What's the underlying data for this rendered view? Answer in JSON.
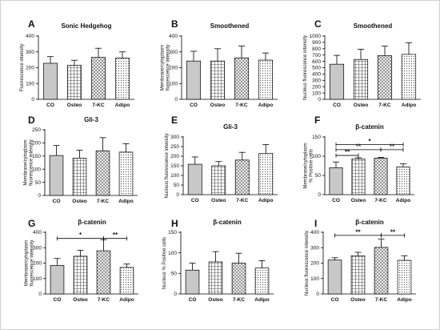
{
  "fill_styles": [
    "solid-gray",
    "grid",
    "crosshatch",
    "dots"
  ],
  "colors": {
    "solid_gray": "#c8c8c8",
    "pattern_ink": "#555555",
    "bar_stroke": "#000000"
  },
  "chart_data": [
    {
      "id": "A",
      "panel_label": "A",
      "type": "bar",
      "title": "Sonic Hedgehog",
      "ylabel": [
        "Fluorescence intensity"
      ],
      "categories": [
        "CO",
        "Osteo",
        "7-KC",
        "Adipo"
      ],
      "values": [
        228,
        215,
        265,
        260
      ],
      "errors": [
        42,
        32,
        58,
        40
      ],
      "ylim": [
        0,
        400
      ],
      "yticks": [
        "0",
        "100",
        "200",
        "300",
        "400"
      ],
      "significance": []
    },
    {
      "id": "B",
      "panel_label": "B",
      "type": "bar",
      "title": "Smoothened",
      "ylabel": [
        "Membrane/cytoplasm",
        "fluorescence intensity"
      ],
      "categories": [
        "CO",
        "Osteo",
        "7-KC",
        "Adipo"
      ],
      "values": [
        242,
        242,
        262,
        248
      ],
      "errors": [
        62,
        78,
        75,
        45
      ],
      "ylim": [
        0,
        400
      ],
      "yticks": [
        "0",
        "100",
        "200",
        "300",
        "400"
      ],
      "significance": []
    },
    {
      "id": "C",
      "panel_label": "C",
      "type": "bar",
      "title": "Smoothened",
      "ylabel": [
        "Nucleus fluorescence intensity"
      ],
      "categories": [
        "CO",
        "Osteo",
        "7-KC",
        "Adipo"
      ],
      "values": [
        555,
        630,
        690,
        710
      ],
      "errors": [
        140,
        160,
        150,
        185
      ],
      "ylim": [
        0,
        1000
      ],
      "yticks": [
        "0",
        "100",
        "200",
        "300",
        "400",
        "500",
        "600",
        "700",
        "800",
        "900",
        "1000"
      ],
      "significance": []
    },
    {
      "id": "D",
      "panel_label": "D",
      "type": "bar",
      "title": "Gli-3",
      "ylabel": [
        "Membrane/cytoplasm",
        "fluorescence intensity"
      ],
      "categories": [
        "CO",
        "Osteo",
        "7-KC",
        "Adipo"
      ],
      "values": [
        152,
        142,
        170,
        165
      ],
      "errors": [
        38,
        30,
        50,
        32
      ],
      "ylim": [
        0,
        250
      ],
      "yticks": [
        "0",
        "50",
        "100",
        "150",
        "200",
        "250"
      ],
      "significance": []
    },
    {
      "id": "E",
      "panel_label": "E",
      "type": "bar",
      "title": "Gli-3",
      "ylabel": [
        "Nucleus fluorescence intensity"
      ],
      "categories": [
        "CO",
        "Osteo",
        "7-KC",
        "Adipo"
      ],
      "values": [
        158,
        150,
        180,
        215
      ],
      "errors": [
        38,
        22,
        40,
        45
      ],
      "ylim": [
        0,
        300
      ],
      "yticks": [
        "0",
        "50",
        "100",
        "150",
        "200",
        "250",
        "300"
      ],
      "significance": []
    },
    {
      "id": "F",
      "panel_label": "F",
      "type": "bar",
      "title": "β-catenin",
      "ylabel": [
        "Membrane/cytoplasm",
        "% Positive cells"
      ],
      "categories": [
        "CO",
        "Osteo",
        "7-KC",
        "Adipo"
      ],
      "values": [
        70,
        93,
        95,
        72
      ],
      "errors": [
        15,
        3,
        2,
        8
      ],
      "ylim": [
        0,
        150
      ],
      "yticks": [
        "0",
        "50",
        "100",
        "150"
      ],
      "significance": [
        {
          "from": 0,
          "to": 3,
          "y": 130,
          "label": "*"
        },
        {
          "from": 0,
          "to": 2,
          "y": 117,
          "label": "**"
        },
        {
          "from": 2,
          "to": 3,
          "y": 117,
          "label": "**"
        },
        {
          "from": 0,
          "to": 1,
          "y": 102,
          "label": "**"
        }
      ]
    },
    {
      "id": "G",
      "panel_label": "G",
      "type": "bar",
      "title": "β-catenin",
      "ylabel": [
        "Membrane/cytoplasm",
        "fluorescence intensity"
      ],
      "categories": [
        "CO",
        "Osteo",
        "7-KC",
        "Adipo"
      ],
      "values": [
        185,
        245,
        280,
        172
      ],
      "errors": [
        45,
        38,
        72,
        22
      ],
      "ylim": [
        0,
        400
      ],
      "yticks": [
        "0",
        "100",
        "200",
        "300",
        "400"
      ],
      "significance": [
        {
          "from": 0,
          "to": 2,
          "y": 360,
          "label": "*"
        },
        {
          "from": 2,
          "to": 3,
          "y": 360,
          "label": "**"
        }
      ]
    },
    {
      "id": "H",
      "panel_label": "H",
      "type": "bar",
      "title": "β-catenin",
      "ylabel": [
        "Nucleus % Positive cells"
      ],
      "categories": [
        "CO",
        "Osteo",
        "7-KC",
        "Adipo"
      ],
      "values": [
        58,
        78,
        75,
        63
      ],
      "errors": [
        17,
        25,
        24,
        18
      ],
      "ylim": [
        0,
        150
      ],
      "yticks": [
        "0",
        "50",
        "100",
        "150"
      ],
      "significance": []
    },
    {
      "id": "I",
      "panel_label": "I",
      "type": "bar",
      "title": "β-catenin",
      "ylabel": [
        "Nucleus fluorescence intensity"
      ],
      "categories": [
        "CO",
        "Osteo",
        "7-KC",
        "Adipo"
      ],
      "values": [
        220,
        248,
        302,
        218
      ],
      "errors": [
        15,
        22,
        55,
        30
      ],
      "ylim": [
        0,
        400
      ],
      "yticks": [
        "0",
        "100",
        "200",
        "300",
        "400"
      ],
      "significance": [
        {
          "from": 0,
          "to": 2,
          "y": 380,
          "label": "**"
        },
        {
          "from": 2,
          "to": 3,
          "y": 380,
          "label": "**"
        }
      ]
    }
  ]
}
